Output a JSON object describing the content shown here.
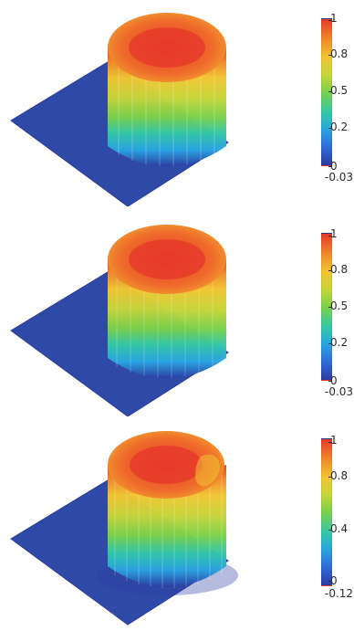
{
  "panels": [
    {
      "colorbar": {
        "ticks": [
          "1",
          "0.8",
          "0.5",
          "0.2",
          "0",
          "-0.03"
        ]
      }
    },
    {
      "colorbar": {
        "ticks": [
          "1",
          "0.8",
          "0.5",
          "0.2",
          "0",
          "-0.03"
        ]
      }
    },
    {
      "colorbar": {
        "ticks": [
          "1",
          "0.8",
          "0.4",
          "0",
          "-0.12"
        ]
      }
    }
  ],
  "colors": {
    "plane": "#2f4aa6",
    "cap_red": "#e63a2b",
    "cap_orange": "#f08a2b",
    "mid_yellow": "#f1c531",
    "mid_green": "#7ad14a",
    "low_cyan": "#33c7a8",
    "low_blue": "#29a3e1",
    "deep_blue": "#2b3ca0"
  }
}
